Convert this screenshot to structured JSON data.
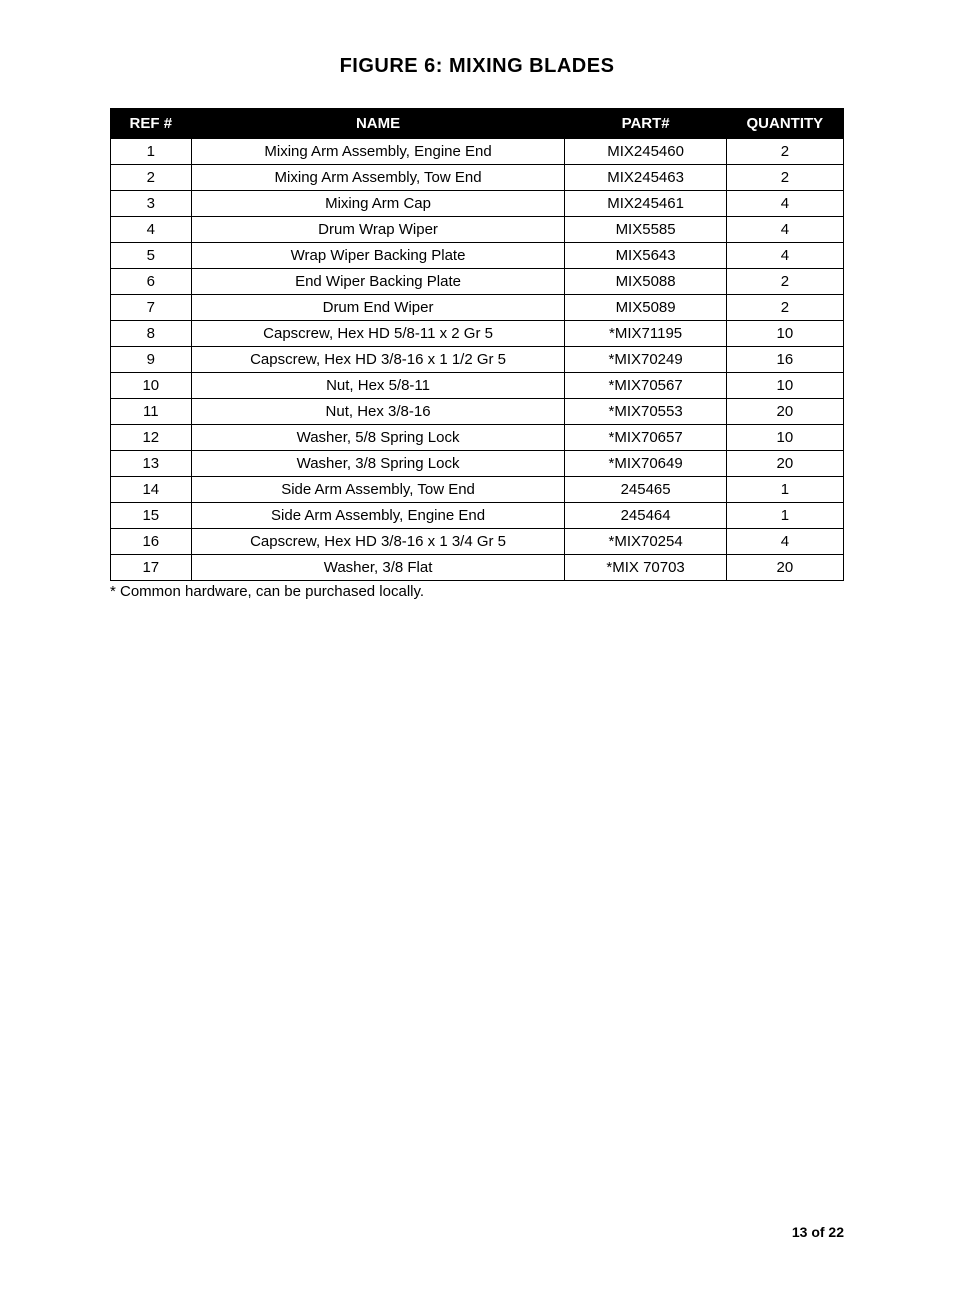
{
  "title": "FIGURE 6: MIXING BLADES",
  "columns": [
    "REF #",
    "NAME",
    "PART#",
    "QUANTITY"
  ],
  "rows": [
    [
      "1",
      "Mixing Arm Assembly, Engine End",
      "MIX245460",
      "2"
    ],
    [
      "2",
      "Mixing Arm Assembly, Tow End",
      "MIX245463",
      "2"
    ],
    [
      "3",
      "Mixing Arm Cap",
      "MIX245461",
      "4"
    ],
    [
      "4",
      "Drum Wrap Wiper",
      "MIX5585",
      "4"
    ],
    [
      "5",
      "Wrap Wiper Backing Plate",
      "MIX5643",
      "4"
    ],
    [
      "6",
      "End Wiper Backing Plate",
      "MIX5088",
      "2"
    ],
    [
      "7",
      "Drum End Wiper",
      "MIX5089",
      "2"
    ],
    [
      "8",
      "Capscrew, Hex HD 5/8-11 x 2 Gr 5",
      "*MIX71195",
      "10"
    ],
    [
      "9",
      "Capscrew, Hex HD 3/8-16 x 1 1/2 Gr 5",
      "*MIX70249",
      "16"
    ],
    [
      "10",
      "Nut, Hex 5/8-11",
      "*MIX70567",
      "10"
    ],
    [
      "11",
      "Nut, Hex 3/8-16",
      "*MIX70553",
      "20"
    ],
    [
      "12",
      "Washer, 5/8 Spring Lock",
      "*MIX70657",
      "10"
    ],
    [
      "13",
      "Washer, 3/8 Spring Lock",
      "*MIX70649",
      "20"
    ],
    [
      "14",
      "Side Arm Assembly, Tow End",
      "245465",
      "1"
    ],
    [
      "15",
      "Side Arm Assembly, Engine End",
      "245464",
      "1"
    ],
    [
      "16",
      "Capscrew, Hex HD 3/8-16 x 1 3/4 Gr 5",
      "*MIX70254",
      "4"
    ],
    [
      "17",
      "Washer, 3/8 Flat",
      "*MIX 70703",
      "20"
    ]
  ],
  "footnote": "* Common hardware, can be purchased locally.",
  "page_number": "13 of 22",
  "styling": {
    "header_bg": "#000000",
    "header_fg": "#ffffff",
    "border_color": "#000000",
    "body_fontsize": 15,
    "title_fontsize": 20
  }
}
